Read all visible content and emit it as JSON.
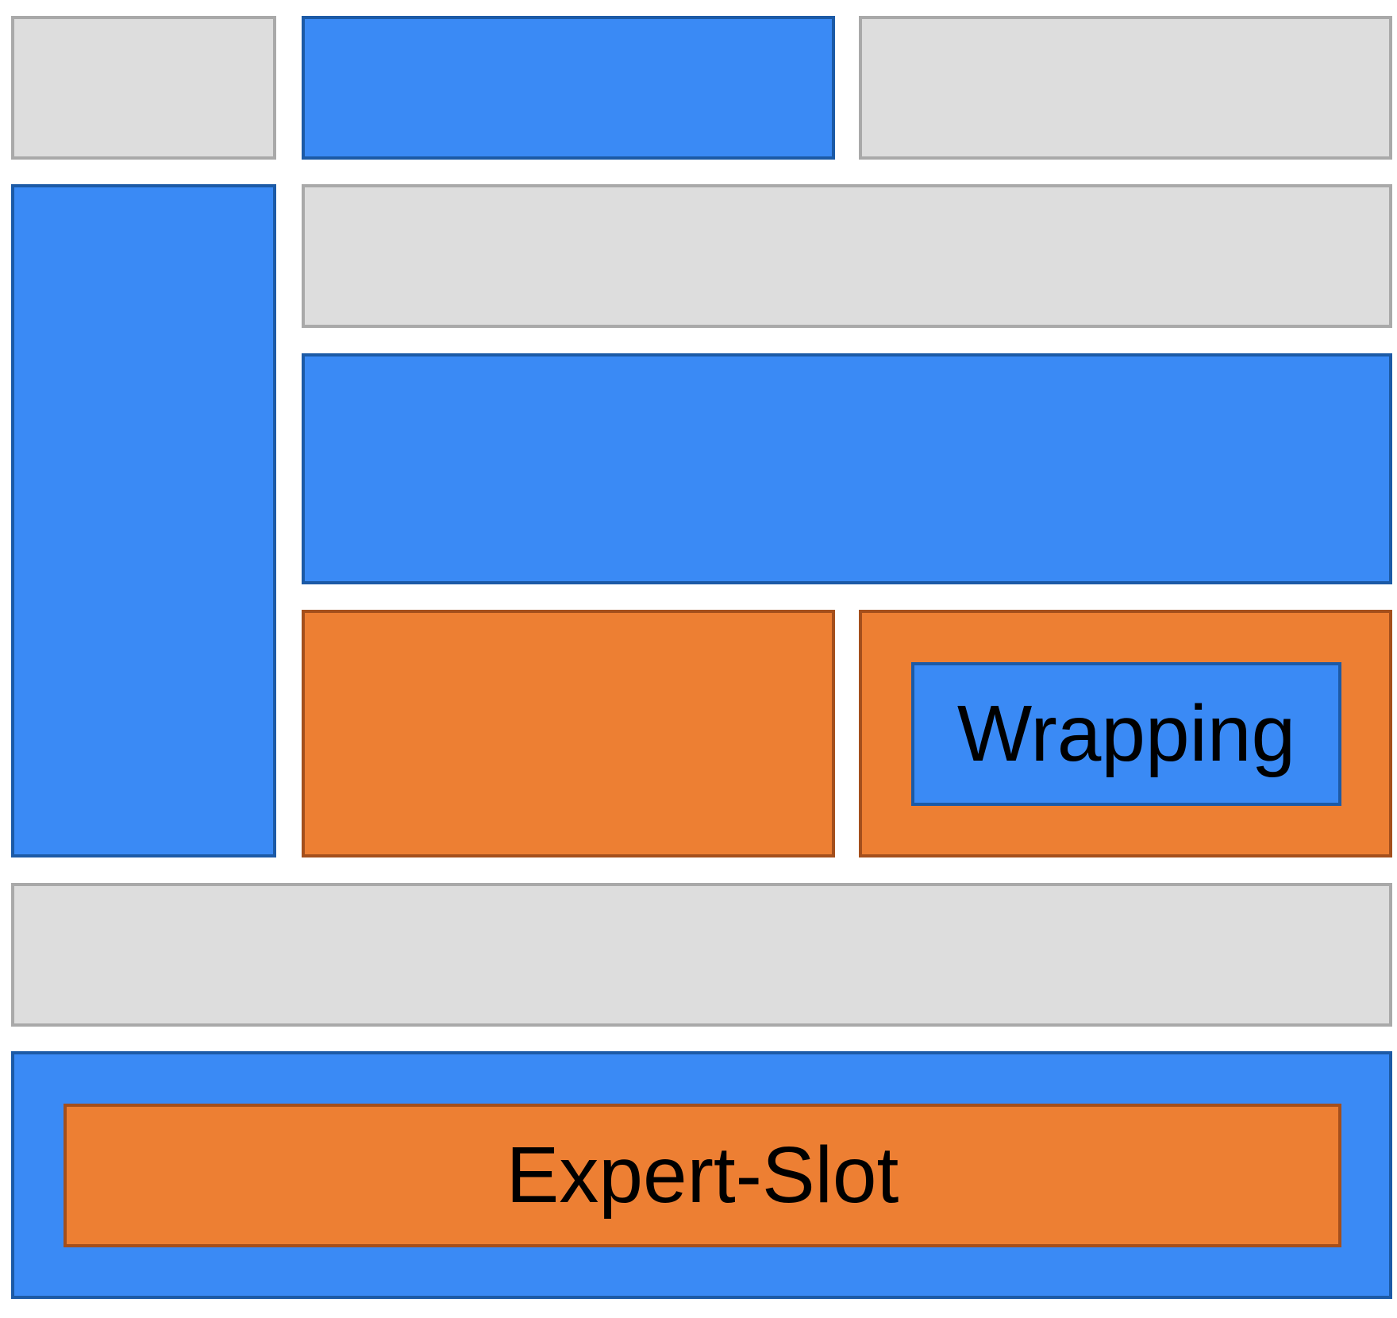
{
  "colors": {
    "gray_fill": "#dddddd",
    "gray_border": "#a9a9a9",
    "blue_fill": "#3a8af5",
    "blue_border": "#1c5aa6",
    "orange_fill": "#ed7f33",
    "orange_border": "#a44f1c"
  },
  "labels": {
    "wrapping": "Wrapping",
    "expert_slot": "Expert-Slot"
  }
}
